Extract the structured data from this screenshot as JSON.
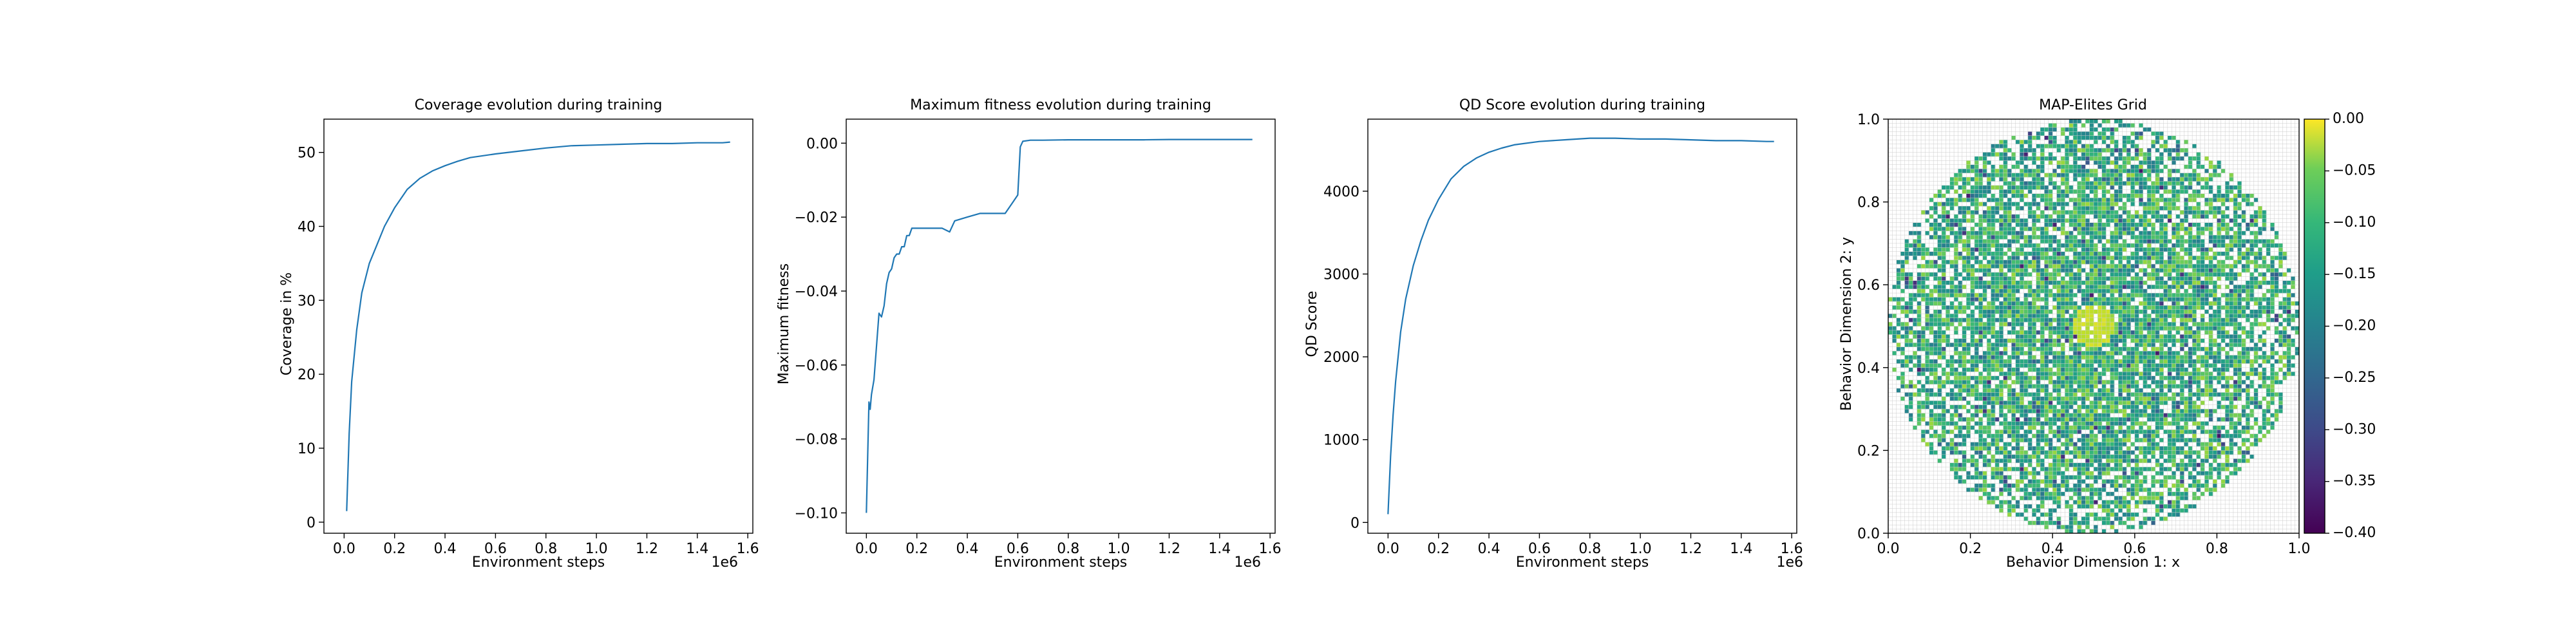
{
  "chart_data": [
    {
      "type": "line",
      "title": "Coverage evolution during training",
      "xlabel": "Environment steps",
      "ylabel": "Coverage in %",
      "xlim": [
        -0.08,
        1.62
      ],
      "ylim": [
        -1.5,
        54.5
      ],
      "x_ticks": [
        0.0,
        0.2,
        0.4,
        0.6,
        0.8,
        1.0,
        1.2,
        1.4,
        1.6
      ],
      "x_tick_labels": [
        "0.0",
        "0.2",
        "0.4",
        "0.6",
        "0.8",
        "1.0",
        "1.2",
        "1.4",
        "1.6"
      ],
      "x_offset_label": "1e6",
      "y_ticks": [
        0,
        10,
        20,
        30,
        40,
        50
      ],
      "y_tick_labels": [
        "0",
        "10",
        "20",
        "30",
        "40",
        "50"
      ],
      "color": "#1f77b4",
      "series": [
        {
          "x": [
            0.01,
            0.02,
            0.03,
            0.05,
            0.07,
            0.1,
            0.13,
            0.16,
            0.2,
            0.25,
            0.3,
            0.35,
            0.4,
            0.45,
            0.5,
            0.6,
            0.7,
            0.8,
            0.9,
            1.0,
            1.1,
            1.2,
            1.3,
            1.4,
            1.5,
            1.53
          ],
          "y": [
            1.5,
            12,
            19,
            26,
            31,
            35,
            37.5,
            40,
            42.5,
            45,
            46.5,
            47.5,
            48.2,
            48.8,
            49.3,
            49.8,
            50.2,
            50.6,
            50.9,
            51.0,
            51.1,
            51.2,
            51.2,
            51.3,
            51.3,
            51.4
          ]
        }
      ]
    },
    {
      "type": "line",
      "title": "Maximum fitness evolution during training",
      "xlabel": "Environment steps",
      "ylabel": "Maximum fitness",
      "xlim": [
        -0.08,
        1.62
      ],
      "ylim": [
        -0.1055,
        0.0065
      ],
      "x_ticks": [
        0.0,
        0.2,
        0.4,
        0.6,
        0.8,
        1.0,
        1.2,
        1.4,
        1.6
      ],
      "x_tick_labels": [
        "0.0",
        "0.2",
        "0.4",
        "0.6",
        "0.8",
        "1.0",
        "1.2",
        "1.4",
        "1.6"
      ],
      "x_offset_label": "1e6",
      "y_ticks": [
        -0.1,
        -0.08,
        -0.06,
        -0.04,
        -0.02,
        0.0
      ],
      "y_tick_labels": [
        "−0.10",
        "−0.08",
        "−0.06",
        "−0.04",
        "−0.02",
        "0.00"
      ],
      "color": "#1f77b4",
      "series": [
        {
          "x": [
            0.0,
            0.01,
            0.015,
            0.02,
            0.03,
            0.04,
            0.05,
            0.06,
            0.07,
            0.08,
            0.09,
            0.1,
            0.11,
            0.12,
            0.13,
            0.14,
            0.15,
            0.16,
            0.17,
            0.18,
            0.2,
            0.25,
            0.3,
            0.33,
            0.35,
            0.4,
            0.45,
            0.5,
            0.55,
            0.58,
            0.6,
            0.61,
            0.62,
            0.65,
            0.7,
            0.8,
            0.9,
            1.0,
            1.1,
            1.2,
            1.3,
            1.4,
            1.5,
            1.53
          ],
          "y": [
            -0.1,
            -0.07,
            -0.072,
            -0.068,
            -0.064,
            -0.055,
            -0.046,
            -0.047,
            -0.044,
            -0.038,
            -0.035,
            -0.034,
            -0.031,
            -0.03,
            -0.03,
            -0.028,
            -0.028,
            -0.025,
            -0.025,
            -0.023,
            -0.023,
            -0.023,
            -0.023,
            -0.024,
            -0.021,
            -0.02,
            -0.019,
            -0.019,
            -0.019,
            -0.016,
            -0.014,
            -0.001,
            0.0005,
            0.0008,
            0.0008,
            0.0009,
            0.0009,
            0.0009,
            0.0009,
            0.001,
            0.001,
            0.001,
            0.001,
            0.001
          ]
        }
      ]
    },
    {
      "type": "line",
      "title": "QD Score evolution during training",
      "xlabel": "Environment steps",
      "ylabel": "QD Score",
      "xlim": [
        -0.08,
        1.62
      ],
      "ylim": [
        -130,
        4870
      ],
      "x_ticks": [
        0.0,
        0.2,
        0.4,
        0.6,
        0.8,
        1.0,
        1.2,
        1.4,
        1.6
      ],
      "x_tick_labels": [
        "0.0",
        "0.2",
        "0.4",
        "0.6",
        "0.8",
        "1.0",
        "1.2",
        "1.4",
        "1.6"
      ],
      "x_offset_label": "1e6",
      "y_ticks": [
        0,
        1000,
        2000,
        3000,
        4000
      ],
      "y_tick_labels": [
        "0",
        "1000",
        "2000",
        "3000",
        "4000"
      ],
      "color": "#1f77b4",
      "series": [
        {
          "x": [
            0.0,
            0.01,
            0.02,
            0.03,
            0.05,
            0.07,
            0.1,
            0.13,
            0.16,
            0.2,
            0.25,
            0.3,
            0.35,
            0.4,
            0.45,
            0.5,
            0.6,
            0.7,
            0.8,
            0.9,
            1.0,
            1.1,
            1.2,
            1.3,
            1.4,
            1.5,
            1.53
          ],
          "y": [
            100,
            800,
            1300,
            1700,
            2300,
            2700,
            3100,
            3400,
            3650,
            3900,
            4150,
            4300,
            4400,
            4470,
            4520,
            4560,
            4600,
            4620,
            4640,
            4640,
            4630,
            4630,
            4620,
            4610,
            4610,
            4600,
            4600
          ]
        }
      ]
    },
    {
      "type": "heatmap",
      "title": "MAP-Elites Grid",
      "xlabel": "Behavior Dimension 1: x",
      "ylabel": "Behavior Dimension 2: y",
      "xlim": [
        0.0,
        1.0
      ],
      "ylim": [
        0.0,
        1.0
      ],
      "x_ticks": [
        0.0,
        0.2,
        0.4,
        0.6,
        0.8,
        1.0
      ],
      "x_tick_labels": [
        "0.0",
        "0.2",
        "0.4",
        "0.6",
        "0.8",
        "1.0"
      ],
      "y_ticks": [
        0.0,
        0.2,
        0.4,
        0.6,
        0.8,
        1.0
      ],
      "y_tick_labels": [
        "0.0",
        "0.2",
        "0.4",
        "0.6",
        "0.8",
        "1.0"
      ],
      "grid": true,
      "grid_cells": [
        100,
        100
      ],
      "filled_region": {
        "shape": "disk",
        "center": [
          0.5,
          0.5
        ],
        "radius": 0.5
      },
      "color_range": [
        -0.4,
        0.0
      ],
      "colormap": "viridis",
      "colorbar_ticks": [
        0.0,
        -0.05,
        -0.1,
        -0.15,
        -0.2,
        -0.25,
        -0.3,
        -0.35,
        -0.4
      ],
      "colorbar_tick_labels": [
        "0.00",
        "−0.05",
        "−0.10",
        "−0.15",
        "−0.20",
        "−0.25",
        "−0.30",
        "−0.35",
        "−0.40"
      ]
    }
  ]
}
